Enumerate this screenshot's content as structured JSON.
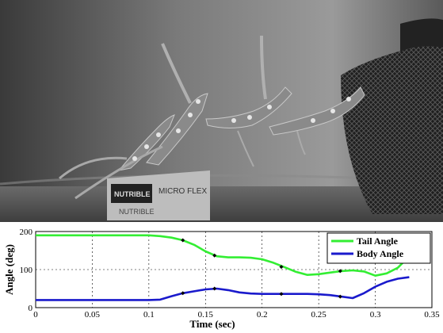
{
  "photo": {
    "box_text_1": "NUTRIBLE",
    "box_text_2": "MICRO FLEX",
    "box_text_3": "NUTRIBLE"
  },
  "chart_data": {
    "type": "line",
    "title": "",
    "xlabel": "Time (sec)",
    "ylabel": "Angle (deg)",
    "xlim": [
      0,
      0.35
    ],
    "ylim": [
      0,
      200
    ],
    "xticks": [
      0,
      0.05,
      0.1,
      0.15,
      0.2,
      0.25,
      0.3,
      0.35
    ],
    "yticks": [
      0,
      100,
      200
    ],
    "grid": true,
    "legend_position": "top-right",
    "series": [
      {
        "name": "Tail Angle",
        "color": "#33ee33",
        "x": [
          0,
          0.05,
          0.1,
          0.11,
          0.12,
          0.13,
          0.14,
          0.15,
          0.16,
          0.17,
          0.18,
          0.19,
          0.2,
          0.21,
          0.22,
          0.23,
          0.24,
          0.25,
          0.26,
          0.27,
          0.28,
          0.29,
          0.3,
          0.31,
          0.32,
          0.325
        ],
        "y": [
          190,
          190,
          190,
          188,
          184,
          177,
          165,
          148,
          135,
          132,
          132,
          131,
          127,
          118,
          106,
          94,
          86,
          88,
          92,
          96,
          98,
          95,
          84,
          90,
          105,
          120
        ]
      },
      {
        "name": "Body Angle",
        "color": "#1a1acc",
        "x": [
          0,
          0.05,
          0.1,
          0.11,
          0.12,
          0.13,
          0.14,
          0.15,
          0.16,
          0.17,
          0.18,
          0.19,
          0.2,
          0.21,
          0.22,
          0.23,
          0.24,
          0.25,
          0.26,
          0.27,
          0.28,
          0.29,
          0.3,
          0.31,
          0.32,
          0.33
        ],
        "y": [
          20,
          20,
          20,
          21,
          30,
          38,
          43,
          48,
          50,
          46,
          40,
          37,
          36,
          36,
          36,
          36,
          36,
          35,
          33,
          29,
          25,
          38,
          55,
          68,
          76,
          80
        ]
      }
    ],
    "markers": [
      {
        "x": 0.13,
        "y": 177
      },
      {
        "x": 0.158,
        "y": 137
      },
      {
        "x": 0.217,
        "y": 107
      },
      {
        "x": 0.269,
        "y": 96
      },
      {
        "x": 0.13,
        "y": 38
      },
      {
        "x": 0.158,
        "y": 50
      },
      {
        "x": 0.217,
        "y": 36
      },
      {
        "x": 0.269,
        "y": 29
      }
    ]
  }
}
